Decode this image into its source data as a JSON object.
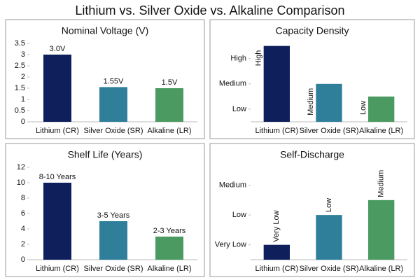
{
  "title": "Lithium vs. Silver Oxide vs. Alkaline Comparison",
  "chart_data": [
    {
      "type": "bar",
      "title": "Nominal Voltage (V)",
      "categories": [
        "Lithium (CR)",
        "Silver Oxide (SR)",
        "Alkaline (LR)"
      ],
      "values": [
        3.0,
        1.55,
        1.5
      ],
      "value_labels": [
        "3.0V",
        "1.55V",
        "1.5V"
      ],
      "colors": [
        "#0f1f5c",
        "#2f7f9b",
        "#4a9a62"
      ],
      "ylim": [
        0,
        3.5
      ],
      "yticks": [
        0,
        0.5,
        1,
        1.5,
        2,
        2.5,
        3,
        3.5
      ]
    },
    {
      "type": "bar",
      "title": "Capacity Density",
      "categories": [
        "Lithium (CR)",
        "Silver Oxide (SR)",
        "Alkaline (LR)"
      ],
      "values": [
        3.5,
        2.0,
        1.5
      ],
      "value_labels": [
        "High",
        "Medium",
        "Low"
      ],
      "colors": [
        "#0f1f5c",
        "#2f7f9b",
        "#4a9a62"
      ],
      "ylim": [
        0.5,
        3.6
      ],
      "yticks": [
        {
          "value": 1,
          "label": "Low"
        },
        {
          "value": 2,
          "label": "Medium"
        },
        {
          "value": 3,
          "label": "High"
        }
      ]
    },
    {
      "type": "bar",
      "title": "Shelf Life (Years)",
      "categories": [
        "Lithium (CR)",
        "Silver Oxide (SR)",
        "Alkaline (LR)"
      ],
      "values": [
        10,
        5,
        3
      ],
      "value_labels": [
        "8-10 Years",
        "3-5 Years",
        "2-3 Years"
      ],
      "colors": [
        "#0f1f5c",
        "#2f7f9b",
        "#4a9a62"
      ],
      "ylim": [
        0,
        12
      ],
      "yticks": [
        0,
        2,
        4,
        6,
        8,
        10,
        12
      ]
    },
    {
      "type": "bar",
      "title": "Self-Discharge",
      "categories": [
        "Lithium (CR)",
        "Silver Oxide (SR)",
        "Alkaline (LR)"
      ],
      "values": [
        1,
        2,
        2.5
      ],
      "value_labels": [
        "Very Low",
        "Low",
        "Medium"
      ],
      "colors": [
        "#0f1f5c",
        "#2f7f9b",
        "#4a9a62"
      ],
      "ylim": [
        0.5,
        3.6
      ],
      "yticks": [
        {
          "value": 1,
          "label": "Very Low"
        },
        {
          "value": 2,
          "label": "Low"
        },
        {
          "value": 3,
          "label": "Medium"
        }
      ]
    }
  ]
}
